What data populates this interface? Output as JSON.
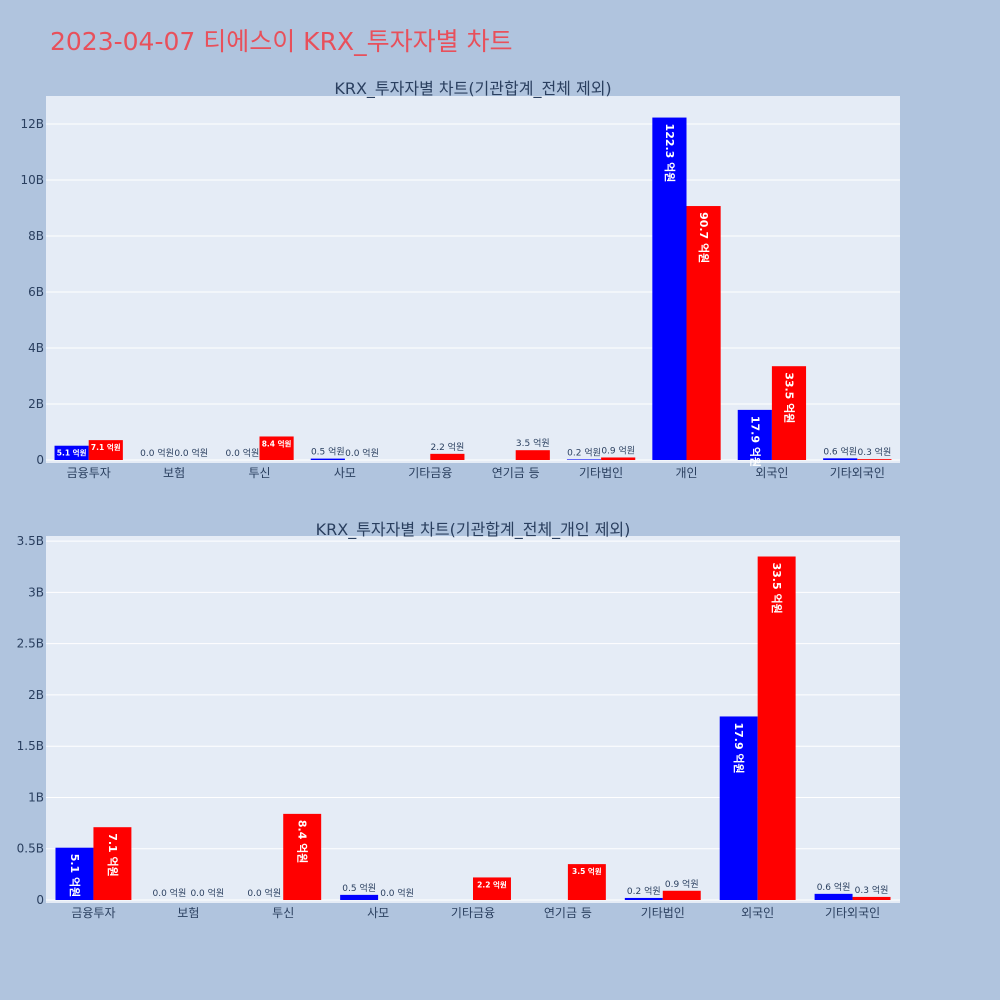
{
  "title": "2023-04-07 티에스이 KRX_투자자별 차트",
  "colors": {
    "series1": "#0000ff",
    "series2": "#ff0000",
    "title": "#e8505b"
  },
  "chart_data": [
    {
      "type": "bar",
      "title": "KRX_투자자별 차트(기관합계_전체 제외)",
      "categories": [
        "금융투자",
        "보험",
        "투신",
        "사모",
        "기타금융",
        "연기금 등",
        "기타법인",
        "개인",
        "외국인",
        "기타외국인"
      ],
      "series": [
        {
          "values": [
            510000000,
            0,
            0,
            50000000,
            null,
            null,
            20000000,
            12230000000,
            1790000000,
            60000000
          ],
          "labels": [
            "5.1 억원",
            "0.0 억원",
            "0.0 억원",
            "0.5 억원",
            "",
            "",
            "0.2 억원",
            "122.3 억원",
            "17.9 억원",
            "0.6 억원"
          ]
        },
        {
          "values": [
            710000000,
            0,
            840000000,
            0,
            220000000,
            350000000,
            90000000,
            9070000000,
            3350000000,
            30000000
          ],
          "labels": [
            "7.1 억원",
            "0.0 억원",
            "8.4 억원",
            "0.0 억원",
            "2.2 억원",
            "3.5 억원",
            "0.9 억원",
            "90.7 억원",
            "33.5 억원",
            "0.3 억원"
          ]
        }
      ],
      "ylim": [
        0,
        13000000000
      ],
      "yticks": [
        0,
        2000000000,
        4000000000,
        6000000000,
        8000000000,
        10000000000,
        12000000000
      ],
      "ytick_labels": [
        "0",
        "2B",
        "4B",
        "6B",
        "8B",
        "10B",
        "12B"
      ],
      "grid": true
    },
    {
      "type": "bar",
      "title": "KRX_투자자별 차트(기관합계_전체_개인 제외)",
      "categories": [
        "금융투자",
        "보험",
        "투신",
        "사모",
        "기타금융",
        "연기금 등",
        "기타법인",
        "외국인",
        "기타외국인"
      ],
      "series": [
        {
          "values": [
            510000000,
            0,
            0,
            50000000,
            null,
            null,
            20000000,
            1790000000,
            60000000
          ],
          "labels": [
            "5.1 억원",
            "0.0 억원",
            "0.0 억원",
            "0.5 억원",
            "",
            "",
            "0.2 억원",
            "17.9 억원",
            "0.6 억원"
          ]
        },
        {
          "values": [
            710000000,
            0,
            840000000,
            0,
            220000000,
            350000000,
            90000000,
            3350000000,
            30000000
          ],
          "labels": [
            "7.1 억원",
            "0.0 억원",
            "8.4 억원",
            "0.0 억원",
            "2.2 억원",
            "3.5 억원",
            "0.9 억원",
            "33.5 억원",
            "0.3 억원"
          ]
        }
      ],
      "ylim": [
        0,
        3550000000
      ],
      "yticks": [
        0,
        500000000,
        1000000000,
        1500000000,
        2000000000,
        2500000000,
        3000000000,
        3500000000
      ],
      "ytick_labels": [
        "0",
        "0.5B",
        "1B",
        "1.5B",
        "2B",
        "2.5B",
        "3B",
        "3.5B"
      ],
      "grid": true
    }
  ]
}
